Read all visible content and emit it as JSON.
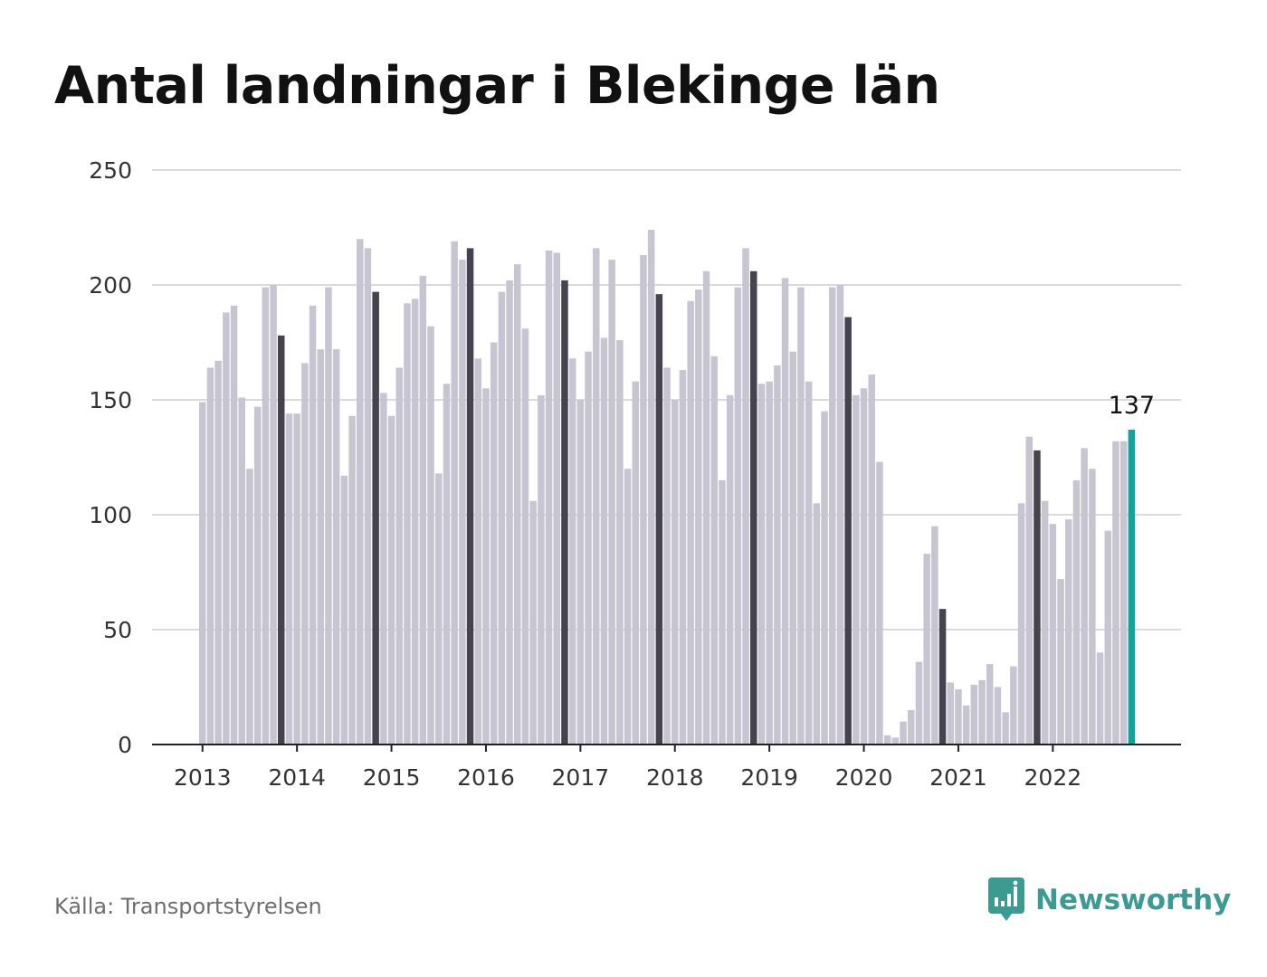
{
  "title": "Antal landningar i Blekinge län",
  "source": "Källa: Transportstyrelsen",
  "brand": {
    "name": "Newsworthy",
    "icon": "bar-chart-speech-bubble-icon",
    "color": "#3b9a92"
  },
  "chart_data": {
    "type": "bar",
    "x_tick_labels": [
      "2013",
      "2014",
      "2015",
      "2016",
      "2017",
      "2018",
      "2019",
      "2020",
      "2021",
      "2022"
    ],
    "y_ticks": [
      0,
      50,
      100,
      150,
      200,
      250
    ],
    "ylim": [
      0,
      250
    ],
    "grid": true,
    "highlight_month": "november",
    "highlight_label": "137",
    "colors": {
      "bar": "#c6c5d1",
      "highlight": "#46434f",
      "latest": "#13a39a",
      "grid": "#dadada",
      "axis": "#222222",
      "tick_text": "#333333"
    },
    "series": [
      {
        "year": "2013",
        "values": [
          149,
          164,
          167,
          188,
          191,
          151,
          120,
          147,
          199,
          200,
          178,
          144
        ]
      },
      {
        "year": "2014",
        "values": [
          144,
          166,
          191,
          172,
          199,
          172,
          117,
          143,
          220,
          216,
          197,
          153
        ]
      },
      {
        "year": "2015",
        "values": [
          143,
          164,
          192,
          194,
          204,
          182,
          118,
          157,
          219,
          211,
          216,
          168
        ]
      },
      {
        "year": "2016",
        "values": [
          155,
          175,
          197,
          202,
          209,
          181,
          106,
          152,
          215,
          214,
          202,
          168
        ]
      },
      {
        "year": "2017",
        "values": [
          150,
          171,
          216,
          177,
          211,
          176,
          120,
          158,
          213,
          224,
          196,
          164
        ]
      },
      {
        "year": "2018",
        "values": [
          150,
          163,
          193,
          198,
          206,
          169,
          115,
          152,
          199,
          216,
          206,
          157
        ]
      },
      {
        "year": "2019",
        "values": [
          158,
          165,
          203,
          171,
          199,
          158,
          105,
          145,
          199,
          200,
          186,
          152
        ]
      },
      {
        "year": "2020",
        "values": [
          155,
          161,
          123,
          4,
          3,
          10,
          15,
          36,
          83,
          95,
          59,
          27
        ]
      },
      {
        "year": "2021",
        "values": [
          24,
          17,
          26,
          28,
          35,
          25,
          14,
          34,
          105,
          134,
          128,
          106
        ]
      },
      {
        "year": "2022",
        "values": [
          96,
          72,
          98,
          115,
          129,
          120,
          40,
          93,
          132,
          132,
          137
        ]
      }
    ]
  }
}
